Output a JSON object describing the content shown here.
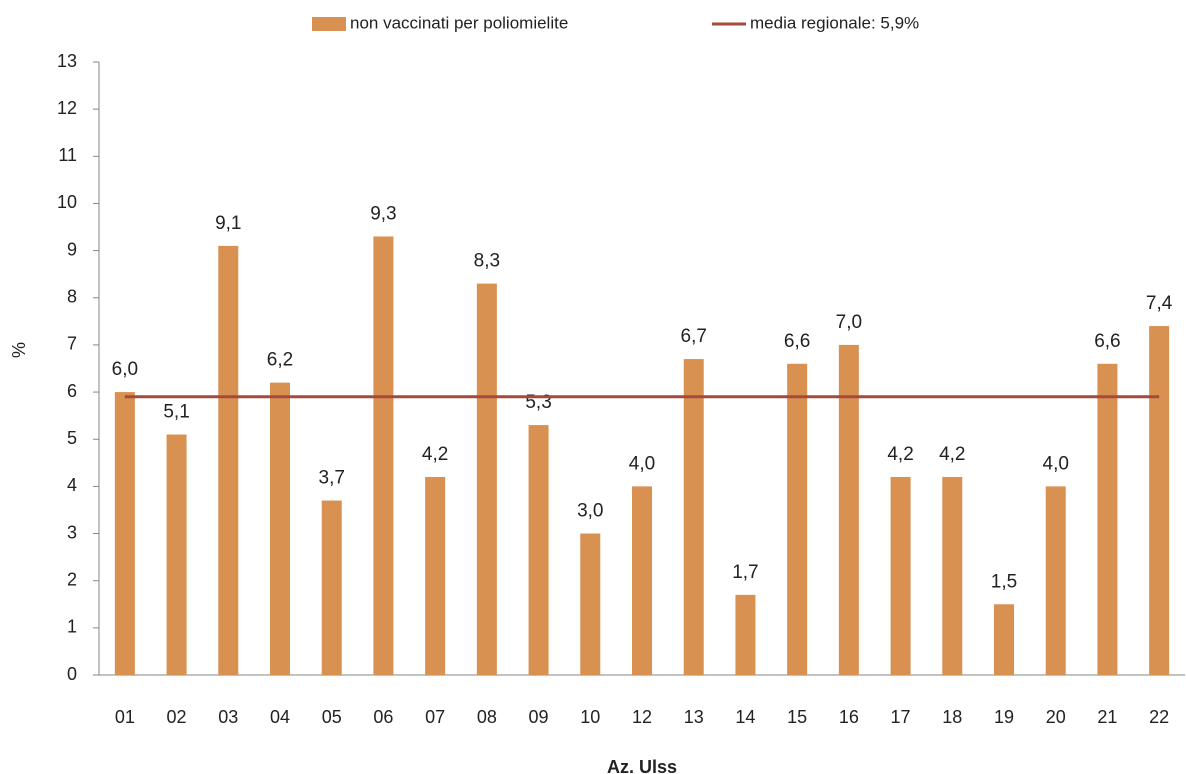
{
  "chart_data": {
    "type": "bar",
    "xlabel": "Az. Ulss",
    "ylabel": "%",
    "categories": [
      "01",
      "02",
      "03",
      "04",
      "05",
      "06",
      "07",
      "08",
      "09",
      "10",
      "12",
      "13",
      "14",
      "15",
      "16",
      "17",
      "18",
      "19",
      "20",
      "21",
      "22"
    ],
    "series": [
      {
        "name": "non vaccinati per poliomielite",
        "type": "bar",
        "color": "#d99152",
        "values": [
          6.0,
          5.1,
          9.1,
          6.2,
          3.7,
          9.3,
          4.2,
          8.3,
          5.3,
          3.0,
          4.0,
          6.7,
          1.7,
          6.6,
          7.0,
          4.2,
          4.2,
          1.5,
          4.0,
          6.6,
          7.4
        ],
        "value_labels": [
          "6,0",
          "5,1",
          "9,1",
          "6,2",
          "3,7",
          "9,3",
          "4,2",
          "8,3",
          "5,3",
          "3,0",
          "4,0",
          "6,7",
          "1,7",
          "6,6",
          "7,0",
          "4,2",
          "4,2",
          "1,5",
          "4,0",
          "6,6",
          "7,4"
        ]
      },
      {
        "name": "media regionale: 5,9%",
        "type": "line",
        "color": "#a34a3c",
        "values": [
          5.9,
          5.9,
          5.9,
          5.9,
          5.9,
          5.9,
          5.9,
          5.9,
          5.9,
          5.9,
          5.9,
          5.9,
          5.9,
          5.9,
          5.9,
          5.9,
          5.9,
          5.9,
          5.9,
          5.9,
          5.9
        ]
      }
    ],
    "ylim": [
      0,
      13
    ],
    "yticks": [
      0,
      1,
      2,
      3,
      4,
      5,
      6,
      7,
      8,
      9,
      10,
      11,
      12,
      13
    ],
    "grid": false
  }
}
